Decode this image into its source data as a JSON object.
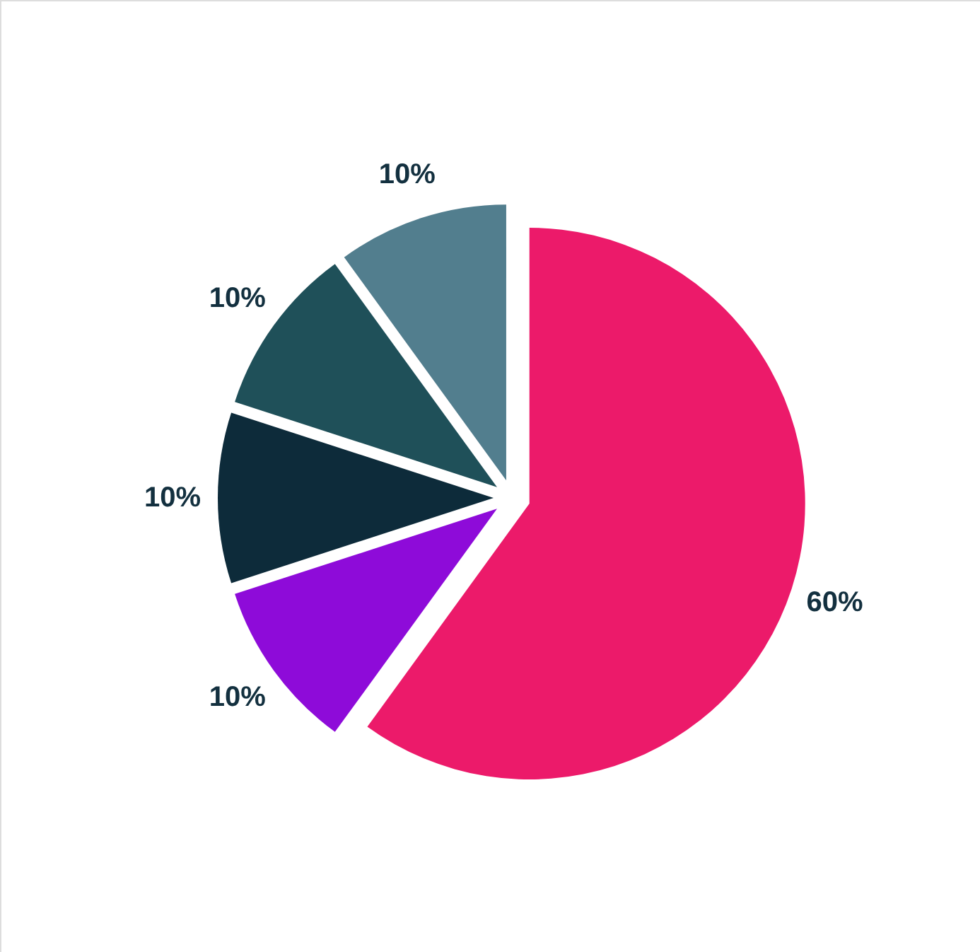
{
  "chart_data": {
    "type": "pie",
    "categories": [
      null,
      null,
      null,
      null,
      null
    ],
    "values": [
      60,
      10,
      10,
      10,
      10
    ],
    "colors": [
      "#ec1a6a",
      "#8e0bd9",
      "#0d2b3a",
      "#1f5059",
      "#527e8e"
    ],
    "value_labels": [
      "60%",
      "10%",
      "10%",
      "10%",
      "10%"
    ]
  }
}
